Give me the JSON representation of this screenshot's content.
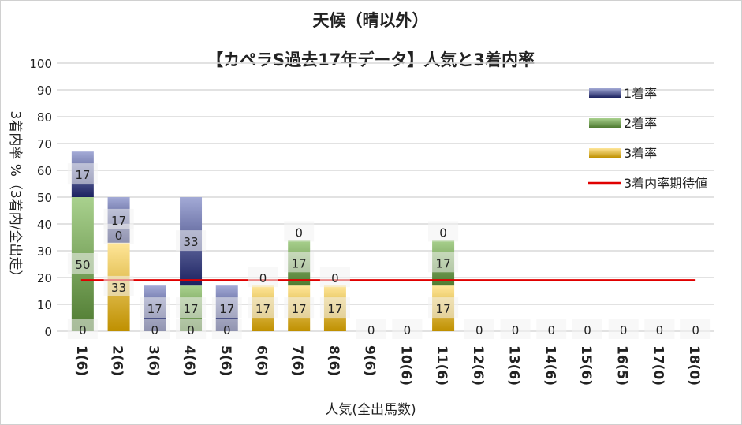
{
  "chart_data": {
    "type": "bar",
    "stacked": true,
    "title": "天候（晴以外）",
    "subtitle": "【カペラS過去17年データ】人気と3着内率",
    "xlabel": "人気(全出馬数)",
    "ylabel": "3着内率 %（3着内/全出走）",
    "ylim": [
      0,
      100
    ],
    "yticks": [
      0,
      10,
      20,
      30,
      40,
      50,
      60,
      70,
      80,
      90,
      100
    ],
    "grid": true,
    "legend_position": "right",
    "categories": [
      "1(6)",
      "2(6)",
      "3(6)",
      "4(6)",
      "5(6)",
      "6(6)",
      "7(6)",
      "8(6)",
      "9(6)",
      "10(6)",
      "11(6)",
      "12(6)",
      "13(6)",
      "14(6)",
      "15(6)",
      "16(5)",
      "17(0)",
      "18(0)"
    ],
    "series": [
      {
        "name": "3着率",
        "color_top": "#ffe699",
        "color_bottom": "#bf9000",
        "values": [
          0,
          33,
          0,
          0,
          0,
          17,
          17,
          17,
          0,
          0,
          17,
          0,
          0,
          0,
          0,
          0,
          0,
          0
        ]
      },
      {
        "name": "2着率",
        "color_top": "#a9d18e",
        "color_bottom": "#4e7a30",
        "values": [
          50,
          0,
          0,
          17,
          0,
          0,
          17,
          0,
          0,
          0,
          17,
          0,
          0,
          0,
          0,
          0,
          0,
          0
        ]
      },
      {
        "name": "1着率",
        "color_top": "#a3aad6",
        "color_bottom": "#1b2160",
        "values": [
          17,
          17,
          17,
          33,
          17,
          0,
          0,
          0,
          0,
          0,
          0,
          0,
          0,
          0,
          0,
          0,
          0,
          0
        ]
      }
    ],
    "data_labels": [
      [
        [
          0,
          0
        ],
        [
          1,
          50
        ],
        [
          2,
          17
        ]
      ],
      [
        [
          0,
          33
        ],
        [
          1,
          0
        ],
        [
          2,
          17
        ]
      ],
      [
        [
          0,
          0
        ],
        [
          2,
          17
        ]
      ],
      [
        [
          0,
          0
        ],
        [
          1,
          17
        ],
        [
          2,
          33
        ]
      ],
      [
        [
          0,
          0
        ],
        [
          2,
          17
        ]
      ],
      [
        [
          0,
          17
        ],
        [
          1,
          0
        ]
      ],
      [
        [
          0,
          17
        ],
        [
          1,
          17
        ],
        [
          2,
          0
        ]
      ],
      [
        [
          0,
          17
        ],
        [
          1,
          0
        ]
      ],
      [
        [
          0,
          0
        ]
      ],
      [
        [
          0,
          0
        ]
      ],
      [
        [
          0,
          17
        ],
        [
          1,
          17
        ],
        [
          2,
          0
        ]
      ],
      [
        [
          0,
          0
        ]
      ],
      [
        [
          0,
          0
        ]
      ],
      [
        [
          0,
          0
        ]
      ],
      [
        [
          0,
          0
        ]
      ],
      [
        [
          0,
          0
        ]
      ],
      [
        [
          0,
          0
        ]
      ],
      [
        [
          0,
          0
        ]
      ]
    ],
    "expected_line": {
      "name": "3着内率期待値",
      "value": 19,
      "color": "#e00000"
    },
    "legend": [
      "1着率",
      "2着率",
      "3着率",
      "3着内率期待値"
    ]
  }
}
